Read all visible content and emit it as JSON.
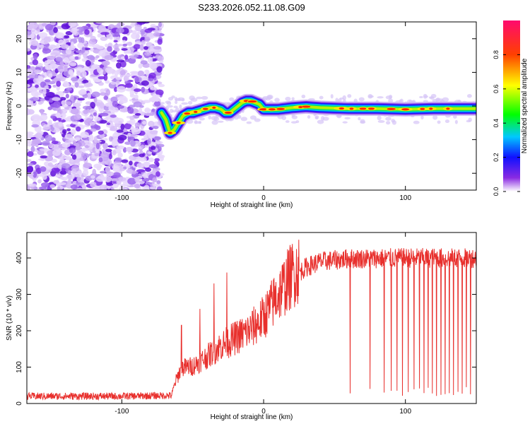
{
  "title": "S233.2026.052.11.08.G09",
  "chart_data": [
    {
      "type": "heatmap",
      "xlabel": "Height of straight line (km)",
      "ylabel": "Frequency (Hz)",
      "xlim": [
        -167,
        150
      ],
      "ylim": [
        -25,
        25
      ],
      "xticks": [
        -100,
        0,
        100
      ],
      "yticks": [
        -20,
        -10,
        0,
        10,
        20
      ],
      "colorbar": {
        "label": "Normalized spectral amplitude",
        "range": [
          0,
          1
        ],
        "ticks": [
          0.0,
          0.2,
          0.4,
          0.6,
          0.8
        ]
      },
      "noise_region": [
        -167,
        -72
      ],
      "ridge": [
        [
          -72,
          -2
        ],
        [
          -69,
          -4
        ],
        [
          -66,
          -8
        ],
        [
          -63,
          -7
        ],
        [
          -60,
          -5
        ],
        [
          -57,
          -3
        ],
        [
          -53,
          -2
        ],
        [
          -50,
          -2
        ],
        [
          -46,
          -1.5
        ],
        [
          -42,
          -1
        ],
        [
          -38,
          -0.5
        ],
        [
          -34,
          -0.5
        ],
        [
          -30,
          -1
        ],
        [
          -27,
          -2
        ],
        [
          -24,
          -2
        ],
        [
          -21,
          -1
        ],
        [
          -18,
          0
        ],
        [
          -15,
          1
        ],
        [
          -12,
          1.5
        ],
        [
          -9,
          1.5
        ],
        [
          -6,
          1
        ],
        [
          -3,
          0.5
        ],
        [
          0,
          -1
        ],
        [
          10,
          -1
        ],
        [
          20,
          -0.5
        ],
        [
          30,
          -0.2
        ],
        [
          40,
          -0.5
        ],
        [
          60,
          -0.8
        ],
        [
          80,
          -0.8
        ],
        [
          100,
          -1
        ],
        [
          120,
          -0.8
        ],
        [
          140,
          -0.8
        ],
        [
          150,
          -0.8
        ]
      ]
    },
    {
      "type": "line",
      "xlabel": "Height of straight line (km)",
      "ylabel": "SNR (10 * v/v)",
      "xlim": [
        -167,
        150
      ],
      "ylim": [
        0,
        470
      ],
      "xticks": [
        -100,
        0,
        100
      ],
      "yticks": [
        0,
        100,
        200,
        300,
        400
      ],
      "color": "#e8302d",
      "envelope": [
        [
          -167,
          20
        ],
        [
          -100,
          20
        ],
        [
          -65,
          22
        ],
        [
          -62,
          60
        ],
        [
          -58,
          95
        ],
        [
          -50,
          100
        ],
        [
          -40,
          125
        ],
        [
          -30,
          155
        ],
        [
          -20,
          175
        ],
        [
          -10,
          195
        ],
        [
          0,
          230
        ],
        [
          10,
          290
        ],
        [
          20,
          345
        ],
        [
          30,
          375
        ],
        [
          40,
          390
        ],
        [
          60,
          398
        ],
        [
          100,
          400
        ],
        [
          150,
          400
        ]
      ],
      "dropouts": [
        61,
        75,
        85,
        90,
        94,
        98,
        102,
        106,
        110,
        113,
        116,
        119,
        122,
        125,
        128,
        131,
        134,
        137,
        140,
        143,
        146
      ],
      "spikes": [
        [
          -58,
          215
        ],
        [
          -45,
          260
        ],
        [
          -35,
          330
        ],
        [
          -26,
          360
        ]
      ]
    }
  ]
}
